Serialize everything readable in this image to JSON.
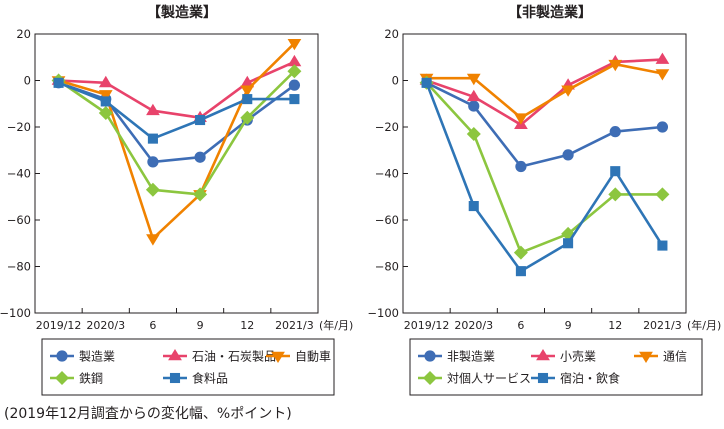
{
  "footnote": "(2019年12月調査からの変化幅、%ポイント)",
  "chart_data": [
    {
      "type": "line",
      "title": "【製造業】",
      "x_unit": "(年/月)",
      "categories": [
        "2019/12",
        "2020/3",
        "6",
        "9",
        "12",
        "2021/3"
      ],
      "ylim": [
        -100,
        20
      ],
      "yticks": [
        20,
        0,
        -20,
        -40,
        -60,
        -80,
        -100
      ],
      "grid": false,
      "legend_position": "bottom",
      "series": [
        {
          "name": "製造業",
          "marker": "circle",
          "color": "#3e6db5",
          "values": [
            -1,
            -8,
            -35,
            -33,
            -17,
            -2
          ]
        },
        {
          "name": "石油・石炭製品",
          "marker": "triangle-up",
          "color": "#e8436b",
          "values": [
            0,
            -1,
            -13,
            -16,
            -1,
            8
          ]
        },
        {
          "name": "自動車",
          "marker": "triangle-down",
          "color": "#f08200",
          "values": [
            0,
            -6,
            -68,
            -49,
            -4,
            16
          ]
        },
        {
          "name": "鉄鋼",
          "marker": "diamond",
          "color": "#8cc63f",
          "values": [
            0,
            -14,
            -47,
            -49,
            -16,
            4
          ]
        },
        {
          "name": "食料品",
          "marker": "square",
          "color": "#2e75b6",
          "values": [
            -1,
            -9,
            -25,
            -17,
            -8,
            -8
          ]
        }
      ]
    },
    {
      "type": "line",
      "title": "【非製造業】",
      "x_unit": "(年/月)",
      "categories": [
        "2019/12",
        "2020/3",
        "6",
        "9",
        "12",
        "2021/3"
      ],
      "ylim": [
        -100,
        20
      ],
      "yticks": [
        20,
        0,
        -20,
        -40,
        -60,
        -80,
        -100
      ],
      "grid": false,
      "legend_position": "bottom",
      "series": [
        {
          "name": "非製造業",
          "marker": "circle",
          "color": "#3e6db5",
          "values": [
            -1,
            -11,
            -37,
            -32,
            -22,
            -20
          ]
        },
        {
          "name": "小売業",
          "marker": "triangle-up",
          "color": "#e8436b",
          "values": [
            0,
            -7,
            -19,
            -2,
            8,
            9
          ]
        },
        {
          "name": "通信",
          "marker": "triangle-down",
          "color": "#f08200",
          "values": [
            1,
            1,
            -16,
            -4,
            7,
            3
          ]
        },
        {
          "name": "対個人サービス",
          "marker": "diamond",
          "color": "#8cc63f",
          "values": [
            -1,
            -23,
            -74,
            -66,
            -49,
            -49
          ]
        },
        {
          "name": "宿泊・飲食",
          "marker": "square",
          "color": "#2e75b6",
          "values": [
            -1,
            -54,
            -82,
            -70,
            -39,
            -71
          ]
        }
      ]
    }
  ]
}
